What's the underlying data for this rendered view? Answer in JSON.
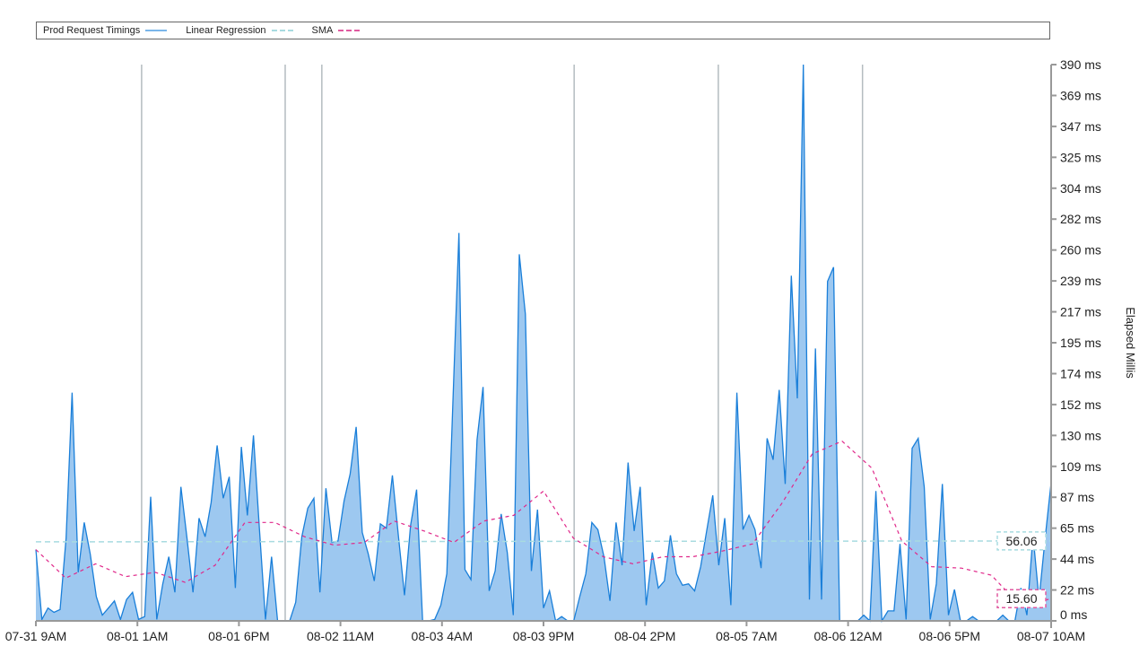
{
  "chart_data": {
    "type": "area",
    "legend": {
      "placement": "top",
      "entries": [
        "Prod Request Timings",
        "Linear Regression",
        "SMA"
      ]
    },
    "x_start": "07-31 09:00",
    "x_end": "08-07 10:00",
    "x_tick_labels": [
      "07-31 9AM",
      "08-01 1AM",
      "08-01 6PM",
      "08-02 11AM",
      "08-03 4AM",
      "08-03 9PM",
      "08-04 2PM",
      "08-05 7AM",
      "08-06 12AM",
      "08-06 5PM",
      "08-07 10AM"
    ],
    "ylabel": "Elapsed Millis",
    "ylim": [
      0,
      390
    ],
    "y_tick_labels": [
      "0 ms",
      "22 ms",
      "44 ms",
      "65 ms",
      "87 ms",
      "109 ms",
      "130 ms",
      "152 ms",
      "174 ms",
      "195 ms",
      "217 ms",
      "239 ms",
      "260 ms",
      "282 ms",
      "304 ms",
      "325 ms",
      "347 ms",
      "369 ms",
      "390 ms"
    ],
    "y_ticks": [
      0,
      21.67,
      43.33,
      65,
      86.67,
      108.33,
      130,
      151.67,
      173.33,
      195,
      216.67,
      238.33,
      260,
      281.67,
      303.33,
      325,
      346.67,
      368.33,
      390
    ],
    "markers": [
      "08-01 02:36",
      "08-02 02:30",
      "08-02 08:36",
      "08-04 02:36",
      "08-05 02:36",
      "08-06 02:36"
    ],
    "series": [
      {
        "name": "Prod Request Timings",
        "color": "#1a7fd9",
        "fill": "#9dc8f0",
        "values": [
          50,
          1,
          9,
          6,
          8,
          58,
          160,
          34,
          69,
          47,
          17,
          4,
          9,
          14,
          1,
          15,
          20,
          1,
          3,
          87,
          1,
          26,
          45,
          20,
          94,
          58,
          20,
          72,
          59,
          83,
          123,
          86,
          101,
          23,
          122,
          74,
          130,
          64,
          1,
          45,
          0,
          0,
          0,
          13,
          59,
          79,
          86,
          20,
          93,
          55,
          56,
          84,
          103,
          136,
          62,
          47,
          28,
          68,
          65,
          102,
          59,
          18,
          67,
          92,
          0,
          0,
          1,
          11,
          33,
          152,
          272,
          36,
          29,
          127,
          164,
          21,
          35,
          75,
          48,
          4,
          257,
          215,
          35,
          78,
          9,
          21,
          0,
          3,
          0,
          0,
          17,
          33,
          69,
          64,
          45,
          14,
          69,
          39,
          111,
          63,
          94,
          11,
          48,
          23,
          28,
          60,
          33,
          25,
          26,
          21,
          38,
          63,
          88,
          39,
          72,
          11,
          160,
          64,
          74,
          64,
          37,
          128,
          113,
          162,
          96,
          242,
          156,
          390,
          15,
          191,
          15,
          238,
          248,
          0,
          0,
          0,
          0,
          4,
          0,
          91,
          0,
          7,
          7,
          54,
          1,
          121,
          128,
          94,
          1,
          26,
          96,
          4,
          22,
          0,
          0,
          3,
          0,
          0,
          0,
          0,
          4,
          0,
          0,
          23,
          4,
          60,
          15,
          58,
          97
        ]
      },
      {
        "name": "Linear Regression",
        "color": "#a8dbe0",
        "values": [
          55.4,
          56.06
        ],
        "end_label": "56.06"
      },
      {
        "name": "SMA",
        "color": "#e0288a",
        "values": [
          50,
          30,
          40,
          31,
          34,
          27,
          39,
          69,
          69,
          59,
          53,
          55,
          70,
          63,
          55,
          70,
          74,
          91,
          58,
          45,
          40,
          45,
          45,
          49,
          54,
          83,
          117,
          126,
          107,
          56,
          38,
          37,
          32,
          10,
          15.6
        ],
        "end_label": "15.60"
      }
    ],
    "grid": false
  }
}
